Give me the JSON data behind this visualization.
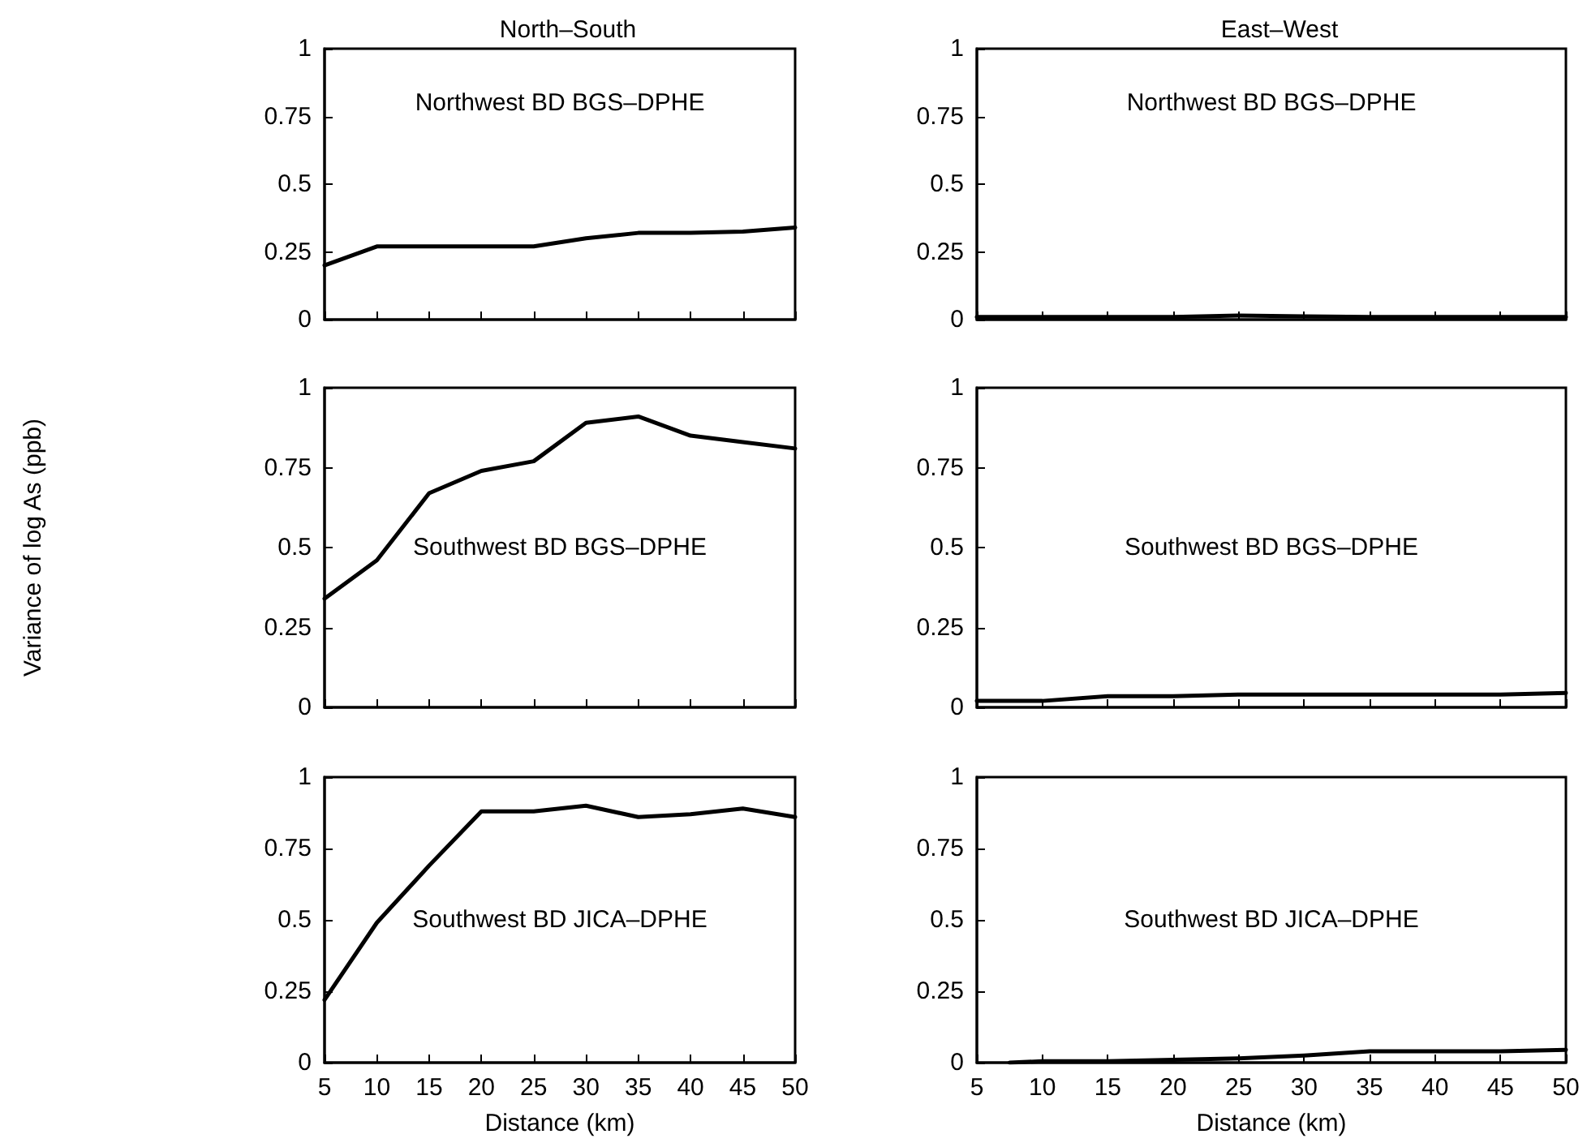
{
  "chart_data": [
    {
      "type": "line",
      "title": "North–South",
      "annotations": [
        "Northwest BD BGS–DPHE"
      ],
      "x": [
        5,
        10,
        15,
        20,
        25,
        30,
        35,
        40,
        45,
        50
      ],
      "series": [
        {
          "color": "#000000",
          "values": [
            0.2,
            0.27,
            0.27,
            0.27,
            0.27,
            0.3,
            0.32,
            0.32,
            0.325,
            0.34
          ]
        }
      ],
      "xlim": [
        5,
        50
      ],
      "xticks": [
        5,
        10,
        15,
        20,
        25,
        30,
        35,
        40,
        45,
        50
      ],
      "ylim": [
        0,
        1
      ],
      "yticks": [
        0,
        0.25,
        0.5,
        0.75,
        1
      ],
      "tick_labels": "y",
      "grid": false,
      "marker": "none",
      "line_style": "solid"
    },
    {
      "type": "line",
      "title": "East–West",
      "annotations": [
        "Northwest BD BGS–DPHE"
      ],
      "x": [
        5,
        10,
        15,
        20,
        25,
        30,
        35,
        40,
        45,
        50
      ],
      "series": [
        {
          "color": "#000000",
          "values": [
            0.01,
            0.01,
            0.01,
            0.01,
            0.015,
            0.012,
            0.01,
            0.01,
            0.01,
            0.01
          ]
        }
      ],
      "xlim": [
        5,
        50
      ],
      "xticks": [
        5,
        10,
        15,
        20,
        25,
        30,
        35,
        40,
        45,
        50
      ],
      "ylim": [
        0,
        1
      ],
      "yticks": [
        0,
        0.25,
        0.5,
        0.75,
        1
      ],
      "tick_labels": "y",
      "grid": false,
      "marker": "none",
      "line_style": "solid"
    },
    {
      "type": "line",
      "ylabel": "Variance of log As (ppb)",
      "annotations": [
        "Southwest BD BGS–DPHE"
      ],
      "x": [
        5,
        10,
        15,
        20,
        25,
        30,
        35,
        40,
        45,
        50
      ],
      "series": [
        {
          "color": "#000000",
          "values": [
            0.34,
            0.46,
            0.67,
            0.74,
            0.77,
            0.89,
            0.91,
            0.85,
            0.83,
            0.81
          ]
        }
      ],
      "xlim": [
        5,
        50
      ],
      "xticks": [
        5,
        10,
        15,
        20,
        25,
        30,
        35,
        40,
        45,
        50
      ],
      "ylim": [
        0,
        1
      ],
      "yticks": [
        0,
        0.25,
        0.5,
        0.75,
        1
      ],
      "tick_labels": "y",
      "grid": false,
      "marker": "none",
      "line_style": "solid"
    },
    {
      "type": "line",
      "annotations": [
        "Southwest BD BGS–DPHE"
      ],
      "x": [
        5,
        10,
        15,
        20,
        25,
        30,
        35,
        40,
        45,
        50
      ],
      "series": [
        {
          "color": "#000000",
          "values": [
            0.02,
            0.02,
            0.035,
            0.035,
            0.04,
            0.04,
            0.04,
            0.04,
            0.04,
            0.045
          ]
        }
      ],
      "xlim": [
        5,
        50
      ],
      "xticks": [
        5,
        10,
        15,
        20,
        25,
        30,
        35,
        40,
        45,
        50
      ],
      "ylim": [
        0,
        1
      ],
      "yticks": [
        0,
        0.25,
        0.5,
        0.75,
        1
      ],
      "tick_labels": "y",
      "grid": false,
      "marker": "none",
      "line_style": "solid"
    },
    {
      "type": "line",
      "xlabel": "Distance (km)",
      "annotations": [
        "Southwest BD JICA–DPHE"
      ],
      "x": [
        5,
        10,
        15,
        20,
        25,
        30,
        35,
        40,
        45,
        50
      ],
      "series": [
        {
          "color": "#000000",
          "values": [
            0.22,
            0.49,
            0.69,
            0.88,
            0.88,
            0.9,
            0.86,
            0.87,
            0.89,
            0.86
          ]
        }
      ],
      "xlim": [
        5,
        50
      ],
      "xticks": [
        5,
        10,
        15,
        20,
        25,
        30,
        35,
        40,
        45,
        50
      ],
      "ylim": [
        0,
        1
      ],
      "yticks": [
        0,
        0.25,
        0.5,
        0.75,
        1
      ],
      "grid": false,
      "marker": "none",
      "line_style": "solid"
    },
    {
      "type": "line",
      "xlabel": "Distance (km)",
      "annotations": [
        "Southwest BD JICA–DPHE"
      ],
      "x": [
        7.5,
        10,
        15,
        20,
        25,
        30,
        35,
        40,
        45,
        50
      ],
      "series": [
        {
          "color": "#000000",
          "values": [
            0,
            0.005,
            0.005,
            0.01,
            0.015,
            0.025,
            0.04,
            0.04,
            0.04,
            0.045
          ]
        }
      ],
      "xlim": [
        5,
        50
      ],
      "xticks": [
        5,
        10,
        15,
        20,
        25,
        30,
        35,
        40,
        45,
        50
      ],
      "ylim": [
        0,
        1
      ],
      "yticks": [
        0,
        0.25,
        0.5,
        0.75,
        1
      ],
      "grid": false,
      "marker": "none",
      "line_style": "solid"
    }
  ]
}
